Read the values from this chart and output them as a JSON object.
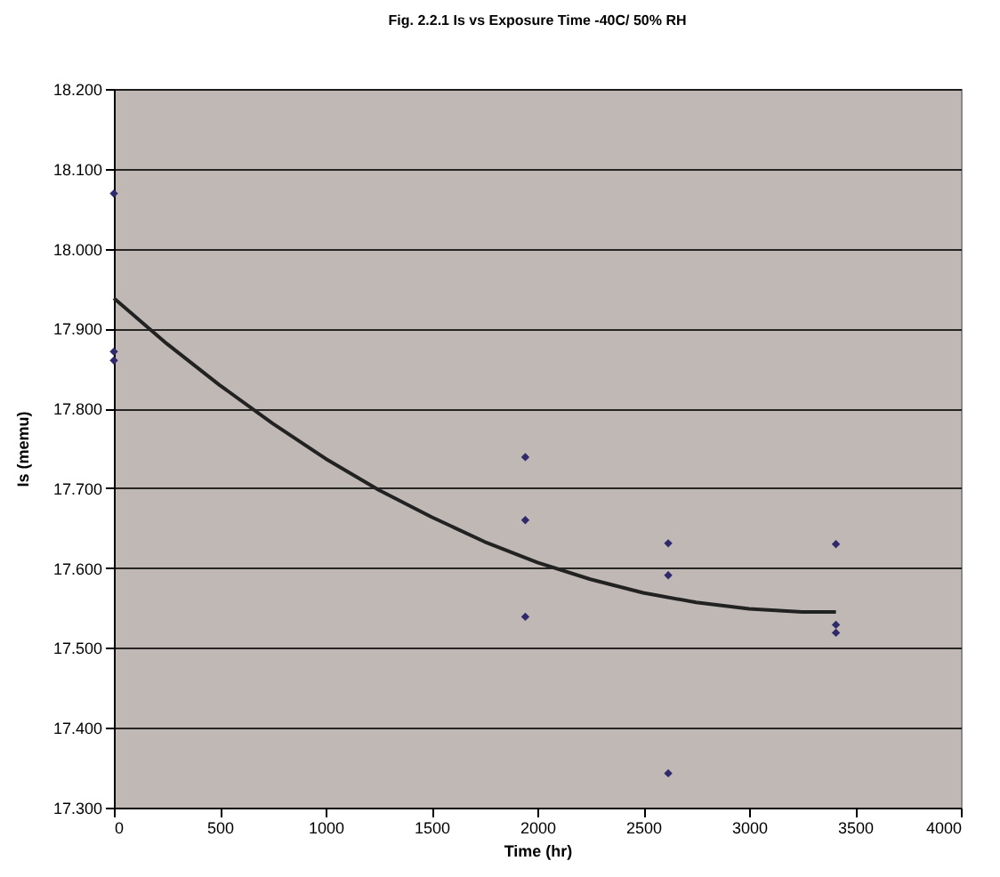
{
  "chart_data": {
    "type": "scatter",
    "title": "Fig. 2.2.1   Is vs Exposure Time -40C/ 50% RH",
    "xlabel": "Time (hr)",
    "ylabel": "Is (memu)",
    "xlim": [
      0,
      4000
    ],
    "xticks": [
      0,
      500,
      1000,
      1500,
      2000,
      2500,
      3000,
      3500,
      4000
    ],
    "ylim": [
      17.3,
      18.2
    ],
    "yticks": [
      {
        "value": 17.3,
        "label": "17.300"
      },
      {
        "value": 17.4,
        "label": "17.400"
      },
      {
        "value": 17.5,
        "label": "17.500"
      },
      {
        "value": 17.6,
        "label": "17.600"
      },
      {
        "value": 17.7,
        "label": "17.700"
      },
      {
        "value": 17.8,
        "label": "17.800"
      },
      {
        "value": 17.9,
        "label": "17.900"
      },
      {
        "value": 18.0,
        "label": "18.000"
      },
      {
        "value": 18.1,
        "label": "18.100"
      },
      {
        "value": 18.2,
        "label": "18.200"
      }
    ],
    "grid": "y",
    "series": [
      {
        "marker": "diamond",
        "color": "#2e2a6b",
        "x": [
          0,
          0,
          0,
          1943,
          1943,
          1943,
          2618,
          2618,
          2618,
          3410,
          3410,
          3410
        ],
        "values": [
          18.069,
          17.871,
          17.86,
          17.739,
          17.66,
          17.539,
          17.631,
          17.591,
          17.343,
          17.63,
          17.529,
          17.519
        ]
      },
      {
        "type": "line",
        "marker": "none",
        "line_style": "solid",
        "color": "#222222",
        "x": [
          0,
          250,
          500,
          750,
          1000,
          1250,
          1500,
          1750,
          2000,
          2250,
          2500,
          2750,
          3000,
          3250,
          3410
        ],
        "values": [
          17.938,
          17.881,
          17.829,
          17.781,
          17.737,
          17.698,
          17.664,
          17.633,
          17.607,
          17.586,
          17.569,
          17.557,
          17.549,
          17.545,
          17.545
        ]
      }
    ]
  }
}
